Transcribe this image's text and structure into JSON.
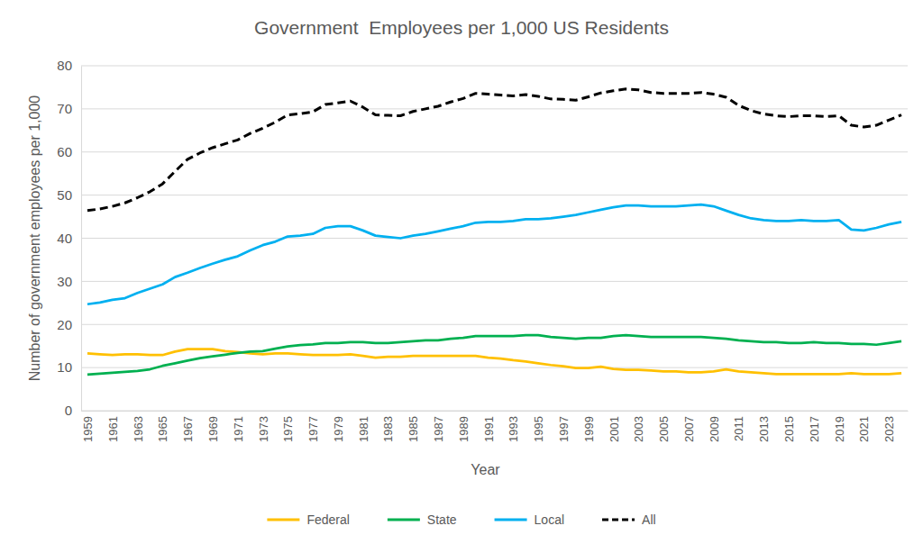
{
  "chart_data": {
    "type": "line",
    "title": "Government  Employees per 1,000 US Residents",
    "x_label": "Year",
    "y_label": "Number of government employees per 1,000",
    "categories": [
      "1959",
      null,
      "1961",
      null,
      "1963",
      null,
      "1965",
      null,
      "1967",
      null,
      "1969",
      null,
      "1971",
      null,
      "1973",
      null,
      "1975",
      null,
      "1977",
      null,
      "1979",
      null,
      "1981",
      null,
      "1983",
      null,
      "1985",
      null,
      "1987",
      null,
      "1989",
      null,
      "1991",
      null,
      "1993",
      null,
      "1995",
      null,
      "1997",
      null,
      "1999",
      null,
      "2001",
      null,
      "2003",
      null,
      "2005",
      null,
      "2007",
      null,
      "2009",
      null,
      "2011",
      null,
      "2013",
      null,
      "2015",
      null,
      "2017",
      null,
      "2019",
      null,
      "2021",
      null,
      "2023",
      null
    ],
    "series": [
      {
        "name": "Federal",
        "color": "#FFC000",
        "line_style": "solid",
        "values": [
          13.3,
          13.1,
          12.9,
          13.1,
          13.1,
          12.9,
          12.9,
          13.7,
          14.3,
          14.3,
          14.3,
          13.8,
          13.6,
          13.3,
          13.1,
          13.3,
          13.3,
          13.1,
          12.9,
          12.9,
          12.9,
          13.1,
          12.7,
          12.3,
          12.5,
          12.5,
          12.7,
          12.7,
          12.7,
          12.7,
          12.7,
          12.7,
          12.3,
          12.1,
          11.7,
          11.4,
          11.0,
          10.6,
          10.3,
          9.9,
          9.9,
          10.2,
          9.7,
          9.5,
          9.5,
          9.3,
          9.1,
          9.1,
          8.9,
          8.9,
          9.1,
          9.6,
          9.1,
          8.9,
          8.7,
          8.5,
          8.5,
          8.5,
          8.5,
          8.5,
          8.5,
          8.7,
          8.5,
          8.5,
          8.5,
          8.7
        ]
      },
      {
        "name": "State",
        "color": "#00B050",
        "line_style": "solid",
        "values": [
          8.4,
          8.6,
          8.8,
          9.0,
          9.2,
          9.6,
          10.4,
          11.0,
          11.6,
          12.2,
          12.6,
          13.0,
          13.4,
          13.7,
          13.8,
          14.4,
          14.9,
          15.2,
          15.4,
          15.7,
          15.7,
          15.9,
          15.9,
          15.7,
          15.7,
          15.9,
          16.1,
          16.3,
          16.3,
          16.7,
          16.9,
          17.3,
          17.3,
          17.3,
          17.3,
          17.5,
          17.5,
          17.1,
          16.9,
          16.7,
          16.9,
          16.9,
          17.3,
          17.5,
          17.3,
          17.1,
          17.1,
          17.1,
          17.1,
          17.1,
          16.9,
          16.7,
          16.3,
          16.1,
          15.9,
          15.9,
          15.7,
          15.7,
          15.9,
          15.7,
          15.7,
          15.5,
          15.5,
          15.3,
          15.7,
          16.1
        ]
      },
      {
        "name": "Local",
        "color": "#00B0F0",
        "line_style": "solid",
        "values": [
          24.7,
          25.1,
          25.7,
          26.1,
          27.3,
          28.3,
          29.3,
          31.0,
          32.0,
          33.1,
          34.1,
          35.0,
          35.8,
          37.2,
          38.4,
          39.2,
          40.4,
          40.6,
          41.0,
          42.4,
          42.8,
          42.8,
          41.8,
          40.6,
          40.3,
          40.0,
          40.6,
          41.0,
          41.6,
          42.2,
          42.8,
          43.6,
          43.8,
          43.8,
          44.0,
          44.4,
          44.4,
          44.6,
          45.0,
          45.4,
          46.0,
          46.6,
          47.2,
          47.6,
          47.6,
          47.4,
          47.4,
          47.4,
          47.6,
          47.8,
          47.4,
          46.4,
          45.4,
          44.6,
          44.2,
          44.0,
          44.0,
          44.2,
          44.0,
          44.0,
          44.2,
          42.0,
          41.8,
          42.4,
          43.2,
          43.8
        ]
      },
      {
        "name": "All",
        "color": "#000000",
        "line_style": "dashed",
        "values": [
          46.4,
          46.8,
          47.4,
          48.2,
          49.4,
          50.8,
          52.6,
          55.5,
          58.3,
          59.8,
          61.0,
          61.9,
          62.8,
          64.3,
          65.5,
          66.9,
          68.6,
          68.9,
          69.3,
          71.0,
          71.4,
          71.8,
          70.4,
          68.6,
          68.5,
          68.4,
          69.4,
          70.0,
          70.6,
          71.6,
          72.4,
          73.6,
          73.4,
          73.2,
          73.0,
          73.3,
          72.9,
          72.3,
          72.2,
          72.0,
          72.8,
          73.7,
          74.2,
          74.6,
          74.4,
          73.8,
          73.6,
          73.6,
          73.6,
          73.8,
          73.4,
          72.7,
          70.8,
          69.6,
          68.8,
          68.4,
          68.2,
          68.4,
          68.4,
          68.2,
          68.4,
          66.2,
          65.8,
          66.2,
          67.4,
          68.6
        ]
      }
    ],
    "ylim": [
      0,
      80
    ],
    "yticks": [
      0,
      10,
      20,
      30,
      40,
      50,
      60,
      70,
      80
    ],
    "grid": true,
    "legend": "bottom"
  }
}
